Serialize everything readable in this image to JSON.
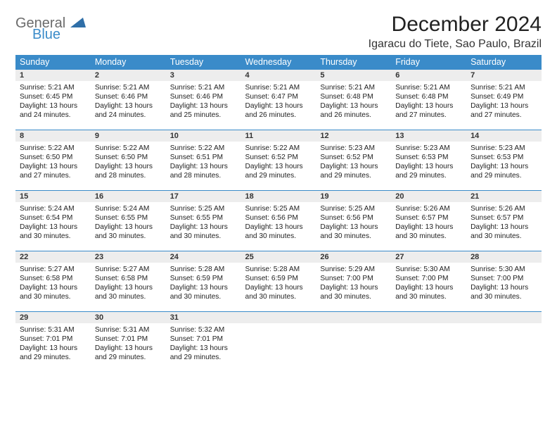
{
  "logo": {
    "general": "General",
    "blue": "Blue"
  },
  "header": {
    "month_title": "December 2024",
    "location": "Igaracu do Tiete, Sao Paulo, Brazil"
  },
  "colors": {
    "header_bg": "#3a8bc9",
    "daynum_bg": "#ededed",
    "border": "#3a8bc9",
    "text": "#222222"
  },
  "day_names": [
    "Sunday",
    "Monday",
    "Tuesday",
    "Wednesday",
    "Thursday",
    "Friday",
    "Saturday"
  ],
  "weeks": [
    [
      {
        "day": "1",
        "sunrise": "Sunrise: 5:21 AM",
        "sunset": "Sunset: 6:45 PM",
        "daylight": "Daylight: 13 hours and 24 minutes."
      },
      {
        "day": "2",
        "sunrise": "Sunrise: 5:21 AM",
        "sunset": "Sunset: 6:46 PM",
        "daylight": "Daylight: 13 hours and 24 minutes."
      },
      {
        "day": "3",
        "sunrise": "Sunrise: 5:21 AM",
        "sunset": "Sunset: 6:46 PM",
        "daylight": "Daylight: 13 hours and 25 minutes."
      },
      {
        "day": "4",
        "sunrise": "Sunrise: 5:21 AM",
        "sunset": "Sunset: 6:47 PM",
        "daylight": "Daylight: 13 hours and 26 minutes."
      },
      {
        "day": "5",
        "sunrise": "Sunrise: 5:21 AM",
        "sunset": "Sunset: 6:48 PM",
        "daylight": "Daylight: 13 hours and 26 minutes."
      },
      {
        "day": "6",
        "sunrise": "Sunrise: 5:21 AM",
        "sunset": "Sunset: 6:48 PM",
        "daylight": "Daylight: 13 hours and 27 minutes."
      },
      {
        "day": "7",
        "sunrise": "Sunrise: 5:21 AM",
        "sunset": "Sunset: 6:49 PM",
        "daylight": "Daylight: 13 hours and 27 minutes."
      }
    ],
    [
      {
        "day": "8",
        "sunrise": "Sunrise: 5:22 AM",
        "sunset": "Sunset: 6:50 PM",
        "daylight": "Daylight: 13 hours and 27 minutes."
      },
      {
        "day": "9",
        "sunrise": "Sunrise: 5:22 AM",
        "sunset": "Sunset: 6:50 PM",
        "daylight": "Daylight: 13 hours and 28 minutes."
      },
      {
        "day": "10",
        "sunrise": "Sunrise: 5:22 AM",
        "sunset": "Sunset: 6:51 PM",
        "daylight": "Daylight: 13 hours and 28 minutes."
      },
      {
        "day": "11",
        "sunrise": "Sunrise: 5:22 AM",
        "sunset": "Sunset: 6:52 PM",
        "daylight": "Daylight: 13 hours and 29 minutes."
      },
      {
        "day": "12",
        "sunrise": "Sunrise: 5:23 AM",
        "sunset": "Sunset: 6:52 PM",
        "daylight": "Daylight: 13 hours and 29 minutes."
      },
      {
        "day": "13",
        "sunrise": "Sunrise: 5:23 AM",
        "sunset": "Sunset: 6:53 PM",
        "daylight": "Daylight: 13 hours and 29 minutes."
      },
      {
        "day": "14",
        "sunrise": "Sunrise: 5:23 AM",
        "sunset": "Sunset: 6:53 PM",
        "daylight": "Daylight: 13 hours and 29 minutes."
      }
    ],
    [
      {
        "day": "15",
        "sunrise": "Sunrise: 5:24 AM",
        "sunset": "Sunset: 6:54 PM",
        "daylight": "Daylight: 13 hours and 30 minutes."
      },
      {
        "day": "16",
        "sunrise": "Sunrise: 5:24 AM",
        "sunset": "Sunset: 6:55 PM",
        "daylight": "Daylight: 13 hours and 30 minutes."
      },
      {
        "day": "17",
        "sunrise": "Sunrise: 5:25 AM",
        "sunset": "Sunset: 6:55 PM",
        "daylight": "Daylight: 13 hours and 30 minutes."
      },
      {
        "day": "18",
        "sunrise": "Sunrise: 5:25 AM",
        "sunset": "Sunset: 6:56 PM",
        "daylight": "Daylight: 13 hours and 30 minutes."
      },
      {
        "day": "19",
        "sunrise": "Sunrise: 5:25 AM",
        "sunset": "Sunset: 6:56 PM",
        "daylight": "Daylight: 13 hours and 30 minutes."
      },
      {
        "day": "20",
        "sunrise": "Sunrise: 5:26 AM",
        "sunset": "Sunset: 6:57 PM",
        "daylight": "Daylight: 13 hours and 30 minutes."
      },
      {
        "day": "21",
        "sunrise": "Sunrise: 5:26 AM",
        "sunset": "Sunset: 6:57 PM",
        "daylight": "Daylight: 13 hours and 30 minutes."
      }
    ],
    [
      {
        "day": "22",
        "sunrise": "Sunrise: 5:27 AM",
        "sunset": "Sunset: 6:58 PM",
        "daylight": "Daylight: 13 hours and 30 minutes."
      },
      {
        "day": "23",
        "sunrise": "Sunrise: 5:27 AM",
        "sunset": "Sunset: 6:58 PM",
        "daylight": "Daylight: 13 hours and 30 minutes."
      },
      {
        "day": "24",
        "sunrise": "Sunrise: 5:28 AM",
        "sunset": "Sunset: 6:59 PM",
        "daylight": "Daylight: 13 hours and 30 minutes."
      },
      {
        "day": "25",
        "sunrise": "Sunrise: 5:28 AM",
        "sunset": "Sunset: 6:59 PM",
        "daylight": "Daylight: 13 hours and 30 minutes."
      },
      {
        "day": "26",
        "sunrise": "Sunrise: 5:29 AM",
        "sunset": "Sunset: 7:00 PM",
        "daylight": "Daylight: 13 hours and 30 minutes."
      },
      {
        "day": "27",
        "sunrise": "Sunrise: 5:30 AM",
        "sunset": "Sunset: 7:00 PM",
        "daylight": "Daylight: 13 hours and 30 minutes."
      },
      {
        "day": "28",
        "sunrise": "Sunrise: 5:30 AM",
        "sunset": "Sunset: 7:00 PM",
        "daylight": "Daylight: 13 hours and 30 minutes."
      }
    ],
    [
      {
        "day": "29",
        "sunrise": "Sunrise: 5:31 AM",
        "sunset": "Sunset: 7:01 PM",
        "daylight": "Daylight: 13 hours and 29 minutes."
      },
      {
        "day": "30",
        "sunrise": "Sunrise: 5:31 AM",
        "sunset": "Sunset: 7:01 PM",
        "daylight": "Daylight: 13 hours and 29 minutes."
      },
      {
        "day": "31",
        "sunrise": "Sunrise: 5:32 AM",
        "sunset": "Sunset: 7:01 PM",
        "daylight": "Daylight: 13 hours and 29 minutes."
      },
      null,
      null,
      null,
      null
    ]
  ]
}
